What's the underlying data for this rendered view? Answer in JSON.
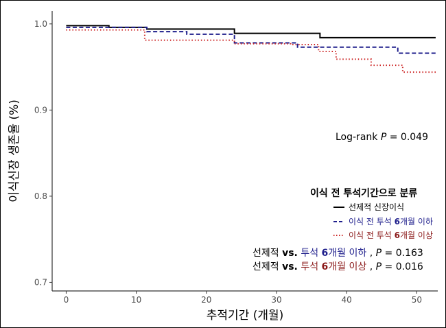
{
  "chart_data": {
    "type": "line",
    "subtype": "kaplan-meier step",
    "xlabel": "추적기간 (개월)",
    "ylabel": "이식신장 생존율 (%)",
    "xlim": [
      -2,
      53
    ],
    "ylim": [
      0.69,
      1.015
    ],
    "x_ticks": [
      0,
      10,
      20,
      30,
      40,
      50
    ],
    "x_tick_labels": [
      "0",
      "10",
      "20",
      "30",
      "40",
      "50"
    ],
    "y_ticks": [
      0.7,
      0.8,
      0.9,
      1.0
    ],
    "y_tick_labels": [
      "0.7",
      "0.8",
      "0.9",
      "1.0"
    ],
    "grid": false,
    "series": [
      {
        "name": "선제적 신장이식",
        "color": "#000000",
        "style": "solid",
        "x": [
          0,
          6.1,
          11.5,
          24.0,
          36.2,
          52.7
        ],
        "y": [
          0.998,
          0.996,
          0.994,
          0.989,
          0.984,
          0.984
        ]
      },
      {
        "name": "이식 전 투석 6개월 이하",
        "color": "#1f1f8c",
        "style": "dashed",
        "x": [
          0,
          11.5,
          17.2,
          24.0,
          33.0,
          47.3,
          52.7
        ],
        "y": [
          0.996,
          0.991,
          0.988,
          0.978,
          0.973,
          0.966,
          0.966
        ]
      },
      {
        "name": "이식 전 투석 6개월 이상",
        "color": "#cc2222",
        "style": "dotted",
        "x": [
          0,
          11.2,
          24.0,
          32.0,
          36.0,
          38.5,
          43.5,
          48.0,
          52.7
        ],
        "y": [
          0.993,
          0.981,
          0.977,
          0.976,
          0.968,
          0.959,
          0.952,
          0.944,
          0.944
        ]
      }
    ],
    "annotations": {
      "logrank_prefix": "Log-rank",
      "p_symbol": "P",
      "logrank_value": " = 0.049",
      "legend_title": "이식 전 투석기간으로 분류",
      "legend_items": [
        {
          "name": "선제적 신장이식",
          "parts": [
            "선제적 신장이식"
          ]
        },
        {
          "name": "이식 전 투석 6개월 이하",
          "parts": [
            "이식 전 투석 ",
            "6",
            "개월 이하"
          ]
        },
        {
          "name": "이식 전 투석 6개월 이상",
          "parts": [
            "이식 전 투석 ",
            "6",
            "개월 이상"
          ]
        }
      ],
      "comparisons": [
        {
          "prefix": "선제적 ",
          "vs": "vs.",
          "group_a": " 투석 ",
          "group_num": "6",
          "group_b": "개월 이하",
          "sep": " ,  ",
          "p": "P",
          "value": " = 0.163",
          "color": "#1f1f8c"
        },
        {
          "prefix": "선제적 ",
          "vs": "vs.",
          "group_a": " 투석 ",
          "group_num": "6",
          "group_b": "개월 이상",
          "sep": " ,  ",
          "p": "P",
          "value": " = 0.016",
          "color": "#8b1a1a"
        }
      ]
    }
  }
}
